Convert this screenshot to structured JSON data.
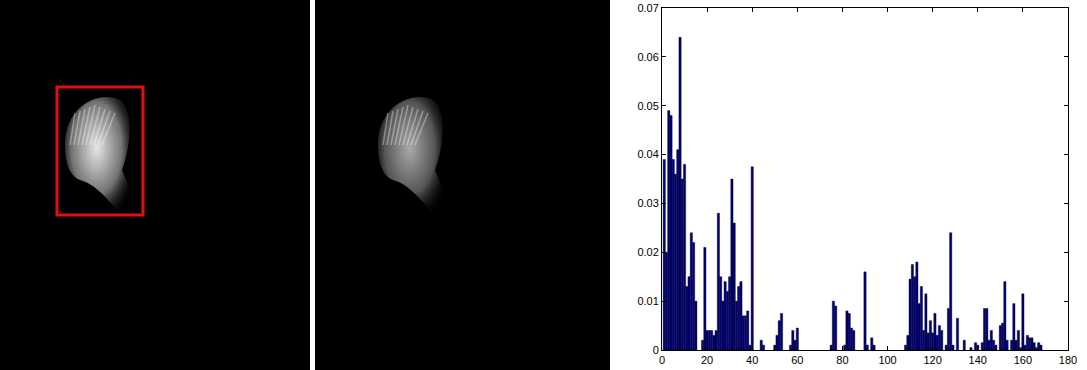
{
  "chart_data": {
    "type": "bar",
    "x": [
      1,
      2,
      3,
      4,
      5,
      6,
      7,
      8,
      9,
      10,
      11,
      12,
      13,
      14,
      15,
      18,
      19,
      20,
      21,
      22,
      23,
      24,
      25,
      26,
      27,
      28,
      29,
      30,
      31,
      32,
      33,
      34,
      35,
      36,
      37,
      38,
      39,
      40,
      44,
      45,
      50,
      51,
      52,
      53,
      57,
      58,
      59,
      60,
      75,
      76,
      77,
      81,
      82,
      83,
      84,
      85,
      90,
      91,
      93,
      94,
      108,
      109,
      110,
      111,
      112,
      113,
      114,
      115,
      116,
      117,
      118,
      119,
      120,
      121,
      122,
      123,
      124,
      126,
      127,
      128,
      129,
      131,
      134,
      137,
      139,
      140,
      142,
      143,
      144,
      145,
      146,
      147,
      148,
      150,
      151,
      152,
      153,
      155,
      156,
      157,
      158,
      159,
      160,
      161,
      162,
      163,
      164,
      165,
      166,
      167,
      168
    ],
    "values": [
      0.039,
      0.02,
      0.049,
      0.048,
      0.039,
      0.036,
      0.041,
      0.064,
      0.035,
      0.038,
      0.013,
      0.015,
      0.024,
      0.022,
      0.01,
      0.002,
      0.021,
      0.004,
      0.004,
      0.004,
      0.003,
      0.004,
      0.028,
      0.015,
      0.01,
      0.014,
      0.012,
      0.015,
      0.035,
      0.026,
      0.01,
      0.013,
      0.014,
      0.007,
      0.007,
      0.008,
      0.001,
      0.0375,
      0.002,
      0.001,
      0.001,
      0.003,
      0.006,
      0.0075,
      0.001,
      0.004,
      0.002,
      0.0045,
      0.001,
      0.01,
      0.009,
      0.001,
      0.008,
      0.0075,
      0.0045,
      0.004,
      0.016,
      0.001,
      0.0025,
      0.001,
      0.001,
      0.003,
      0.0145,
      0.0175,
      0.015,
      0.018,
      0.0095,
      0.013,
      0.004,
      0.0115,
      0.0035,
      0.006,
      0.0035,
      0.0075,
      0.003,
      0.005,
      0.004,
      0.001,
      0.0085,
      0.024,
      0.001,
      0.0065,
      0.002,
      0.0005,
      0.0015,
      0.001,
      0.0015,
      0.0085,
      0.0085,
      0.002,
      0.004,
      0.002,
      0.001,
      0.005,
      0.0055,
      0.014,
      0.002,
      0.002,
      0.0095,
      0.002,
      0.004,
      0.0005,
      0.0115,
      0.001,
      0.003,
      0.0025,
      0.0025,
      0.0015,
      0.0005,
      0.0015,
      0.001
    ],
    "color": "#00007f",
    "xlim": [
      0,
      180
    ],
    "xticks": [
      0,
      20,
      40,
      60,
      80,
      100,
      120,
      140,
      160,
      180
    ],
    "ylim": [
      0,
      0.07
    ],
    "yticks": [
      0,
      0.01,
      0.02,
      0.03,
      0.04,
      0.05,
      0.06,
      0.07
    ],
    "grid": false
  }
}
